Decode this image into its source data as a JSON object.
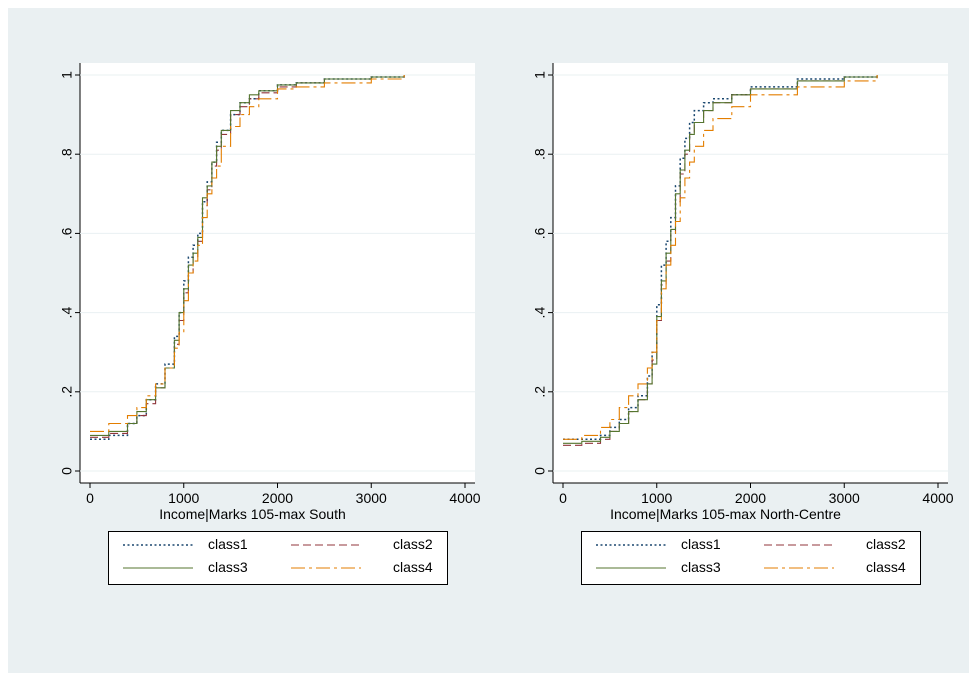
{
  "colors": {
    "background": "#eaf0f2",
    "plot_background": "#ffffff",
    "grid": "#eaf0f2",
    "class1": "#1a476f",
    "class2": "#90353b",
    "class3": "#55752f",
    "class4": "#e37e00"
  },
  "chart_data": [
    {
      "type": "line",
      "xlabel": "Income|Marks 105-max South",
      "ylabel": "",
      "xlim": [
        0,
        4000
      ],
      "ylim": [
        0,
        1
      ],
      "xticks": [
        "0",
        "1000",
        "2000",
        "3000",
        "4000"
      ],
      "yticks": [
        "0",
        ".2",
        ".4",
        ".6",
        ".8",
        "1"
      ],
      "grid": true,
      "legend_position": "bottom",
      "series": [
        {
          "name": "class1",
          "style": "dotted",
          "x": [
            0,
            200,
            400,
            500,
            600,
            700,
            800,
            900,
            950,
            1000,
            1050,
            1100,
            1150,
            1200,
            1250,
            1300,
            1350,
            1400,
            1500,
            1600,
            1700,
            1800,
            2000,
            2200,
            2500,
            3000,
            3350
          ],
          "y": [
            0.08,
            0.09,
            0.12,
            0.14,
            0.18,
            0.22,
            0.27,
            0.34,
            0.4,
            0.48,
            0.54,
            0.57,
            0.6,
            0.68,
            0.73,
            0.78,
            0.83,
            0.86,
            0.9,
            0.93,
            0.94,
            0.96,
            0.975,
            0.98,
            0.99,
            0.995,
            1.0
          ]
        },
        {
          "name": "class2",
          "style": "dashed",
          "x": [
            0,
            200,
            400,
            500,
            600,
            700,
            800,
            900,
            950,
            1000,
            1050,
            1100,
            1150,
            1200,
            1250,
            1300,
            1350,
            1400,
            1500,
            1600,
            1700,
            1800,
            2000,
            2200,
            2500,
            3000,
            3350
          ],
          "y": [
            0.085,
            0.095,
            0.12,
            0.14,
            0.17,
            0.21,
            0.26,
            0.32,
            0.38,
            0.45,
            0.5,
            0.54,
            0.58,
            0.67,
            0.71,
            0.77,
            0.81,
            0.85,
            0.9,
            0.92,
            0.94,
            0.955,
            0.97,
            0.98,
            0.99,
            0.995,
            1.0
          ]
        },
        {
          "name": "class3",
          "style": "solid",
          "x": [
            0,
            200,
            400,
            500,
            600,
            700,
            800,
            900,
            950,
            1000,
            1050,
            1100,
            1150,
            1200,
            1250,
            1300,
            1350,
            1400,
            1500,
            1600,
            1700,
            1800,
            2000,
            2200,
            2500,
            3000,
            3350
          ],
          "y": [
            0.09,
            0.1,
            0.12,
            0.15,
            0.18,
            0.21,
            0.26,
            0.33,
            0.4,
            0.46,
            0.52,
            0.55,
            0.59,
            0.69,
            0.72,
            0.78,
            0.82,
            0.86,
            0.91,
            0.93,
            0.95,
            0.96,
            0.975,
            0.98,
            0.99,
            0.995,
            1.0
          ]
        },
        {
          "name": "class4",
          "style": "longdash",
          "x": [
            0,
            200,
            400,
            500,
            600,
            700,
            800,
            900,
            950,
            1000,
            1050,
            1100,
            1150,
            1200,
            1250,
            1300,
            1350,
            1400,
            1500,
            1600,
            1700,
            1800,
            2000,
            2200,
            2500,
            3000,
            3350
          ],
          "y": [
            0.1,
            0.12,
            0.14,
            0.16,
            0.19,
            0.22,
            0.26,
            0.31,
            0.35,
            0.43,
            0.5,
            0.53,
            0.57,
            0.64,
            0.7,
            0.74,
            0.77,
            0.82,
            0.87,
            0.9,
            0.92,
            0.94,
            0.965,
            0.97,
            0.98,
            0.99,
            1.0
          ]
        }
      ]
    },
    {
      "type": "line",
      "xlabel": "Income|Marks 105-max North-Centre",
      "ylabel": "",
      "xlim": [
        0,
        4000
      ],
      "ylim": [
        0,
        1
      ],
      "xticks": [
        "0",
        "1000",
        "2000",
        "3000",
        "4000"
      ],
      "yticks": [
        "0",
        ".2",
        ".4",
        ".6",
        ".8",
        "1"
      ],
      "grid": true,
      "legend_position": "bottom",
      "series": [
        {
          "name": "class1",
          "style": "dotted",
          "x": [
            0,
            200,
            400,
            500,
            600,
            700,
            800,
            900,
            950,
            1000,
            1050,
            1100,
            1150,
            1200,
            1250,
            1300,
            1350,
            1400,
            1500,
            1600,
            1800,
            2000,
            2500,
            3000,
            3350
          ],
          "y": [
            0.08,
            0.08,
            0.09,
            0.11,
            0.13,
            0.16,
            0.19,
            0.24,
            0.3,
            0.42,
            0.52,
            0.58,
            0.64,
            0.72,
            0.79,
            0.84,
            0.88,
            0.91,
            0.93,
            0.94,
            0.95,
            0.97,
            0.99,
            0.995,
            1.0
          ]
        },
        {
          "name": "class2",
          "style": "dashed",
          "x": [
            0,
            200,
            400,
            500,
            600,
            700,
            800,
            900,
            950,
            1000,
            1050,
            1100,
            1150,
            1200,
            1250,
            1300,
            1350,
            1400,
            1500,
            1600,
            1800,
            2000,
            2500,
            3000,
            3350
          ],
          "y": [
            0.065,
            0.07,
            0.08,
            0.1,
            0.12,
            0.15,
            0.18,
            0.22,
            0.28,
            0.38,
            0.47,
            0.53,
            0.6,
            0.68,
            0.75,
            0.8,
            0.85,
            0.88,
            0.91,
            0.93,
            0.95,
            0.965,
            0.985,
            0.995,
            1.0
          ]
        },
        {
          "name": "class3",
          "style": "solid",
          "x": [
            0,
            200,
            400,
            500,
            600,
            700,
            800,
            900,
            950,
            1000,
            1050,
            1100,
            1150,
            1200,
            1250,
            1300,
            1350,
            1400,
            1500,
            1600,
            1800,
            2000,
            2500,
            3000,
            3350
          ],
          "y": [
            0.07,
            0.075,
            0.085,
            0.1,
            0.12,
            0.15,
            0.18,
            0.22,
            0.27,
            0.39,
            0.48,
            0.55,
            0.61,
            0.7,
            0.76,
            0.81,
            0.85,
            0.88,
            0.91,
            0.93,
            0.95,
            0.965,
            0.985,
            0.995,
            1.0
          ]
        },
        {
          "name": "class4",
          "style": "longdash",
          "x": [
            0,
            200,
            400,
            500,
            600,
            700,
            800,
            900,
            950,
            1000,
            1050,
            1100,
            1150,
            1200,
            1250,
            1300,
            1350,
            1400,
            1500,
            1600,
            1800,
            2000,
            2500,
            3000,
            3350
          ],
          "y": [
            0.08,
            0.09,
            0.11,
            0.13,
            0.16,
            0.19,
            0.22,
            0.26,
            0.3,
            0.38,
            0.46,
            0.52,
            0.57,
            0.63,
            0.69,
            0.74,
            0.78,
            0.82,
            0.86,
            0.89,
            0.92,
            0.95,
            0.97,
            0.985,
            1.0
          ]
        }
      ]
    }
  ]
}
